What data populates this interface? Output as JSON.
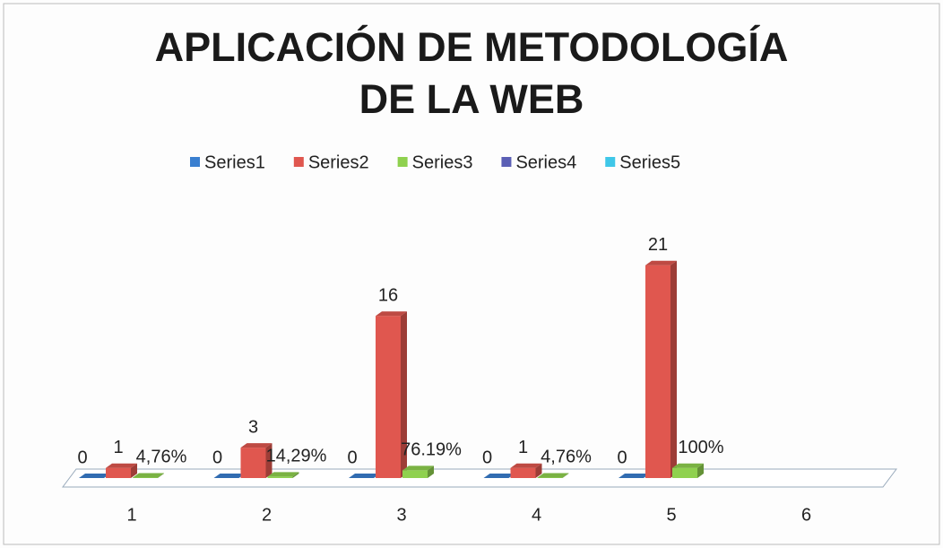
{
  "chart_data": {
    "type": "bar3d",
    "title": "APLICACIÓN DE METODOLOGÍA DE LA WEB",
    "categories": [
      "1",
      "2",
      "3",
      "4",
      "5",
      "6"
    ],
    "series": [
      {
        "name": "Series1",
        "color": "#3a7fd0",
        "values": [
          0,
          0,
          0,
          0,
          0,
          null
        ]
      },
      {
        "name": "Series2",
        "color": "#e0574f",
        "values": [
          1,
          3,
          16,
          1,
          21,
          null
        ]
      },
      {
        "name": "Series3",
        "color": "#8fd14f",
        "values": [
          0.0476,
          0.1429,
          0.7619,
          0.0476,
          1,
          null
        ],
        "value_labels": [
          "4,76%",
          "14,29%",
          "76.19%",
          "4,76%",
          "100%",
          null
        ]
      },
      {
        "name": "Series4",
        "color": "#5b5fb5",
        "values": [
          null,
          null,
          null,
          null,
          null,
          null
        ]
      },
      {
        "name": "Series5",
        "color": "#3fc7e8",
        "values": [
          null,
          null,
          null,
          null,
          null,
          null
        ]
      }
    ],
    "legend": "top"
  }
}
